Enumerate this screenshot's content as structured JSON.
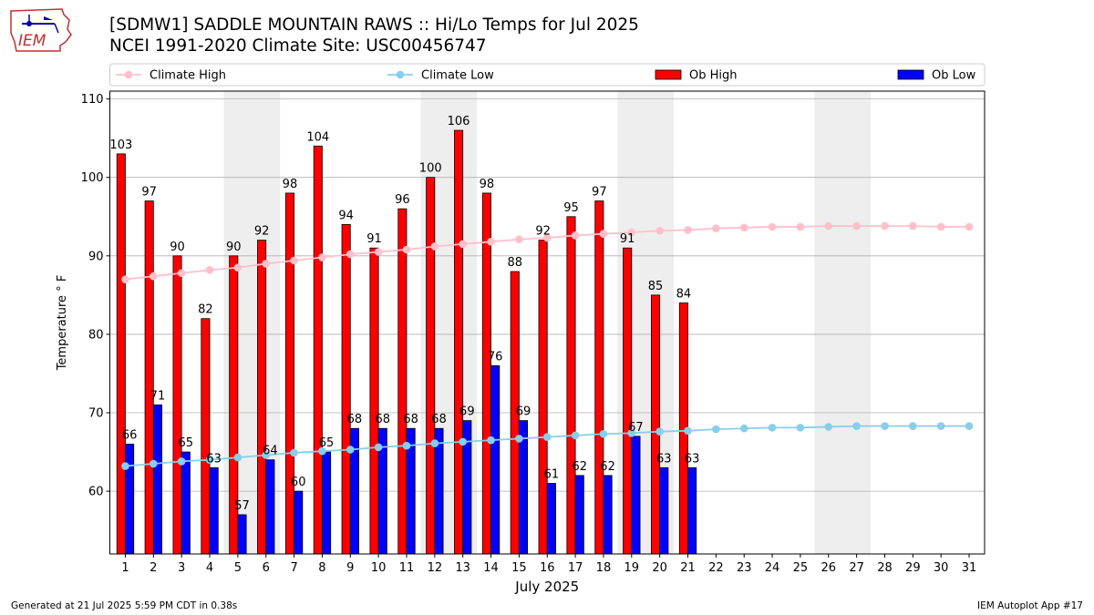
{
  "header": {
    "title": "[SDMW1] SADDLE MOUNTAIN RAWS :: Hi/Lo Temps for Jul 2025",
    "subtitle": "NCEI 1991-2020 Climate Site: USC00456747"
  },
  "logo": {
    "text": "IEM"
  },
  "footer": {
    "left": "Generated at 21 Jul 2025 5:59 PM CDT in 0.38s",
    "right": "IEM Autoplot App #17"
  },
  "colors": {
    "ob_high": "#ff0000",
    "ob_low": "#0000ff",
    "climate_high": "#ffc0cb",
    "climate_low": "#87ceeb",
    "weekend_shade": "#eeeeee",
    "grid": "#b0b0b0"
  },
  "chart_data": {
    "type": "bar",
    "xlabel": "July 2025",
    "ylabel": "Temperature ° F",
    "ylim": [
      52,
      111
    ],
    "yticks": [
      60,
      70,
      80,
      90,
      100,
      110
    ],
    "grid": "horizontal",
    "legend_position": "top",
    "legend": [
      "Climate High",
      "Climate Low",
      "Ob High",
      "Ob Low"
    ],
    "days": [
      1,
      2,
      3,
      4,
      5,
      6,
      7,
      8,
      9,
      10,
      11,
      12,
      13,
      14,
      15,
      16,
      17,
      18,
      19,
      20,
      21,
      22,
      23,
      24,
      25,
      26,
      27,
      28,
      29,
      30,
      31
    ],
    "shaded_day_ranges": [
      [
        5,
        6
      ],
      [
        12,
        13
      ],
      [
        19,
        20
      ],
      [
        26,
        27
      ]
    ],
    "series": [
      {
        "name": "Ob High",
        "kind": "bar",
        "values": [
          103,
          97,
          90,
          82,
          90,
          92,
          98,
          104,
          94,
          91,
          96,
          100,
          106,
          98,
          88,
          92,
          95,
          97,
          91,
          85,
          84
        ]
      },
      {
        "name": "Ob Low",
        "kind": "bar",
        "values": [
          66,
          71,
          65,
          63,
          57,
          64,
          60,
          65,
          68,
          68,
          68,
          68,
          69,
          76,
          69,
          61,
          62,
          62,
          67,
          63,
          63
        ]
      },
      {
        "name": "Climate High",
        "kind": "line",
        "values": [
          87.0,
          87.4,
          87.8,
          88.2,
          88.5,
          89.0,
          89.4,
          89.8,
          90.2,
          90.5,
          90.8,
          91.2,
          91.5,
          91.8,
          92.1,
          92.3,
          92.6,
          92.8,
          93.0,
          93.2,
          93.3,
          93.5,
          93.6,
          93.7,
          93.7,
          93.8,
          93.8,
          93.8,
          93.8,
          93.7,
          93.7
        ]
      },
      {
        "name": "Climate Low",
        "kind": "line",
        "values": [
          63.2,
          63.5,
          63.8,
          64.0,
          64.3,
          64.6,
          64.9,
          65.1,
          65.3,
          65.6,
          65.8,
          66.1,
          66.3,
          66.5,
          66.7,
          66.9,
          67.1,
          67.3,
          67.4,
          67.6,
          67.7,
          67.9,
          68.0,
          68.1,
          68.1,
          68.2,
          68.3,
          68.3,
          68.3,
          68.3,
          68.3
        ]
      }
    ]
  }
}
